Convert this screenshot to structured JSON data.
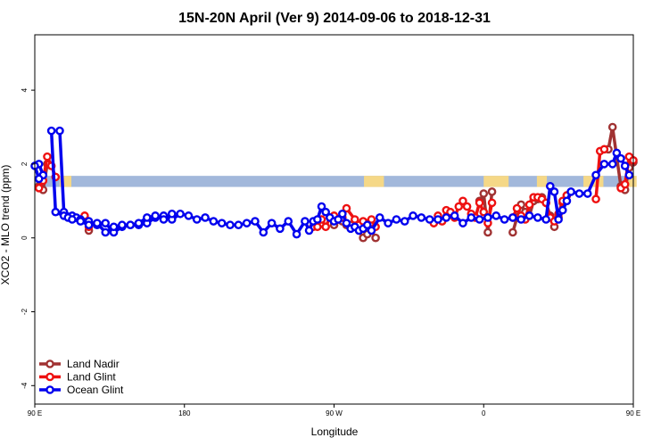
{
  "chart_data": {
    "type": "line",
    "title": "15N-20N April (Ver 9)   2014-09-06 to 2018-12-31",
    "xlabel": "Longitude",
    "ylabel": "XCO2 - MLO trend (ppm)",
    "xlim": [
      90,
      450
    ],
    "ylim": [
      -4.5,
      5.5
    ],
    "x_ticks": [
      {
        "value": 90,
        "label": "90 E"
      },
      {
        "value": 180,
        "label": "180"
      },
      {
        "value": 270,
        "label": "90 W"
      },
      {
        "value": 360,
        "label": "0"
      },
      {
        "value": 450,
        "label": "90 E"
      },
      {
        "value": 540,
        "label": "180"
      }
    ],
    "y_ticks": [
      {
        "value": -4,
        "label": "-4"
      },
      {
        "value": -2,
        "label": "-2"
      },
      {
        "value": 0,
        "label": "0"
      },
      {
        "value": 2,
        "label": "2"
      },
      {
        "value": 4,
        "label": "4"
      }
    ],
    "grid": false,
    "legend_position": "bottom-left",
    "background_band": {
      "y_range": [
        1.38,
        1.68
      ],
      "ocean_color": "#a2b8db",
      "land_color": "#f5d887"
    },
    "series": [
      {
        "name": "Land Nadir",
        "color": "#a03232",
        "points": [
          [
            92.5,
            1.4
          ],
          [
            95,
            1.3
          ],
          [
            97.5,
            2.0
          ],
          [
            122.5,
            0.2
          ],
          [
            270,
            0.35
          ],
          [
            272.5,
            0.5
          ],
          [
            275,
            0.45
          ],
          [
            277.5,
            0.35
          ],
          [
            280,
            0.35
          ],
          [
            282.5,
            0.3
          ],
          [
            285,
            0.2
          ],
          [
            287.5,
            0.0
          ],
          [
            290,
            0.1
          ],
          [
            292.5,
            0.2
          ],
          [
            295,
            0.0
          ],
          [
            357.5,
            1.0
          ],
          [
            360,
            1.2
          ],
          [
            362.5,
            0.15
          ],
          [
            365,
            1.25
          ],
          [
            377.5,
            0.15
          ],
          [
            380,
            0.55
          ],
          [
            382.5,
            0.9
          ],
          [
            385,
            0.7
          ],
          [
            387.5,
            0.6
          ],
          [
            390,
            1.0
          ],
          [
            392.5,
            1.05
          ],
          [
            395,
            1.1
          ],
          [
            397.5,
            0.95
          ],
          [
            400,
            0.6
          ],
          [
            402.5,
            0.3
          ],
          [
            405,
            0.55
          ],
          [
            407.5,
            0.95
          ],
          [
            410,
            1.15
          ],
          [
            435,
            2.4
          ],
          [
            437.5,
            3.0
          ],
          [
            442.5,
            1.4
          ],
          [
            445,
            1.3
          ],
          [
            447.5,
            1.9
          ],
          [
            450,
            2.05
          ]
        ]
      },
      {
        "name": "Land Glint",
        "color": "#ee1111",
        "points": [
          [
            92.5,
            1.35
          ],
          [
            95,
            1.55
          ],
          [
            97.5,
            2.2
          ],
          [
            100,
            1.95
          ],
          [
            102.5,
            1.65
          ],
          [
            120,
            0.6
          ],
          [
            122.5,
            0.3
          ],
          [
            257.5,
            0.3
          ],
          [
            260,
            0.3
          ],
          [
            262.5,
            0.5
          ],
          [
            265,
            0.3
          ],
          [
            267.5,
            0.55
          ],
          [
            270,
            0.6
          ],
          [
            272.5,
            0.5
          ],
          [
            275,
            0.55
          ],
          [
            277.5,
            0.8
          ],
          [
            282.5,
            0.5
          ],
          [
            285,
            0.35
          ],
          [
            287.5,
            0.45
          ],
          [
            292.5,
            0.5
          ],
          [
            295,
            0.3
          ],
          [
            330,
            0.4
          ],
          [
            332.5,
            0.6
          ],
          [
            335,
            0.45
          ],
          [
            337.5,
            0.75
          ],
          [
            340,
            0.7
          ],
          [
            342.5,
            0.55
          ],
          [
            345,
            0.85
          ],
          [
            347.5,
            1.0
          ],
          [
            350,
            0.85
          ],
          [
            352.5,
            0.65
          ],
          [
            355,
            0.55
          ],
          [
            357.5,
            0.95
          ],
          [
            360,
            0.7
          ],
          [
            362.5,
            0.4
          ],
          [
            365,
            0.95
          ],
          [
            377.5,
            0.55
          ],
          [
            380,
            0.8
          ],
          [
            382.5,
            0.6
          ],
          [
            385,
            0.5
          ],
          [
            387.5,
            0.9
          ],
          [
            390,
            1.1
          ],
          [
            392.5,
            1.1
          ],
          [
            395,
            1.05
          ],
          [
            397.5,
            0.95
          ],
          [
            400,
            0.55
          ],
          [
            402.5,
            0.45
          ],
          [
            405,
            0.65
          ],
          [
            407.5,
            1.0
          ],
          [
            410,
            1.15
          ],
          [
            427.5,
            1.05
          ],
          [
            430,
            2.35
          ],
          [
            432.5,
            2.4
          ],
          [
            442.5,
            1.35
          ],
          [
            445,
            1.45
          ],
          [
            447.5,
            2.2
          ],
          [
            450,
            2.1
          ]
        ]
      },
      {
        "name": "Ocean Glint",
        "color": "#0000ee",
        "points": [
          [
            92.5,
            2.0
          ],
          [
            95,
            1.7
          ],
          [
            105,
            2.9
          ],
          [
            107.5,
            0.7
          ],
          [
            112.5,
            0.6
          ],
          [
            115,
            0.55
          ],
          [
            117.5,
            0.5
          ],
          [
            122.5,
            0.45
          ],
          [
            127.5,
            0.35
          ],
          [
            132.5,
            0.4
          ],
          [
            137.5,
            0.15
          ],
          [
            142.5,
            0.3
          ],
          [
            147.5,
            0.35
          ],
          [
            152.5,
            0.35
          ],
          [
            157.5,
            0.4
          ],
          [
            162.5,
            0.55
          ],
          [
            167.5,
            0.6
          ],
          [
            172.5,
            0.5
          ],
          [
            177.5,
            0.65
          ],
          [
            182.5,
            0.6
          ],
          [
            187.5,
            0.5
          ],
          [
            192.5,
            0.55
          ],
          [
            197.5,
            0.45
          ],
          [
            202.5,
            0.4
          ],
          [
            207.5,
            0.35
          ],
          [
            212.5,
            0.35
          ],
          [
            217.5,
            0.4
          ],
          [
            222.5,
            0.45
          ],
          [
            227.5,
            0.15
          ],
          [
            232.5,
            0.4
          ],
          [
            237.5,
            0.25
          ],
          [
            242.5,
            0.45
          ],
          [
            247.5,
            0.1
          ],
          [
            252.5,
            0.45
          ],
          [
            255,
            0.2
          ],
          [
            257.5,
            0.45
          ],
          [
            260,
            0.5
          ],
          [
            262.5,
            0.85
          ],
          [
            265,
            0.7
          ],
          [
            267.5,
            0.55
          ],
          [
            270,
            0.45
          ],
          [
            272.5,
            0.5
          ],
          [
            275,
            0.65
          ],
          [
            277.5,
            0.4
          ],
          [
            280,
            0.25
          ],
          [
            282.5,
            0.3
          ],
          [
            285,
            0.2
          ],
          [
            287.5,
            0.25
          ],
          [
            290,
            0.35
          ],
          [
            292.5,
            0.2
          ],
          [
            297.5,
            0.55
          ],
          [
            302.5,
            0.4
          ],
          [
            307.5,
            0.5
          ],
          [
            312.5,
            0.45
          ],
          [
            317.5,
            0.6
          ],
          [
            322.5,
            0.55
          ],
          [
            327.5,
            0.5
          ],
          [
            332.5,
            0.5
          ],
          [
            337.5,
            0.55
          ],
          [
            342.5,
            0.6
          ],
          [
            347.5,
            0.4
          ],
          [
            352.5,
            0.55
          ],
          [
            357.5,
            0.5
          ],
          [
            362.5,
            0.55
          ],
          [
            367.5,
            0.6
          ],
          [
            372.5,
            0.5
          ],
          [
            377.5,
            0.55
          ],
          [
            382.5,
            0.5
          ],
          [
            387.5,
            0.6
          ],
          [
            392.5,
            0.55
          ],
          [
            397.5,
            0.5
          ],
          [
            400,
            1.4
          ],
          [
            402.5,
            1.25
          ],
          [
            405,
            0.5
          ],
          [
            407.5,
            0.75
          ],
          [
            410,
            1.0
          ],
          [
            412.5,
            1.25
          ],
          [
            417.5,
            1.2
          ],
          [
            422.5,
            1.2
          ],
          [
            427.5,
            1.7
          ],
          [
            432.5,
            2.0
          ],
          [
            437.5,
            2.0
          ],
          [
            440,
            2.3
          ],
          [
            442.5,
            2.15
          ],
          [
            445,
            1.95
          ],
          [
            447.5,
            1.7
          ]
        ]
      },
      {
        "name": "Ocean Glint (wrapped)",
        "color": "#0000ee",
        "points": [
          [
            90,
            1.95
          ],
          [
            92.5,
            1.6
          ],
          [
            100,
            2.9
          ],
          [
            102.5,
            0.7
          ],
          [
            107.5,
            0.6
          ],
          [
            110,
            0.55
          ],
          [
            112.5,
            0.5
          ],
          [
            117.5,
            0.45
          ],
          [
            122.5,
            0.35
          ],
          [
            127.5,
            0.4
          ],
          [
            132.5,
            0.15
          ],
          [
            137.5,
            0.3
          ],
          [
            142.5,
            0.35
          ],
          [
            147.5,
            0.35
          ],
          [
            152.5,
            0.4
          ],
          [
            157.5,
            0.55
          ],
          [
            162.5,
            0.6
          ],
          [
            167.5,
            0.5
          ],
          [
            172.5,
            0.65
          ]
        ]
      }
    ]
  }
}
